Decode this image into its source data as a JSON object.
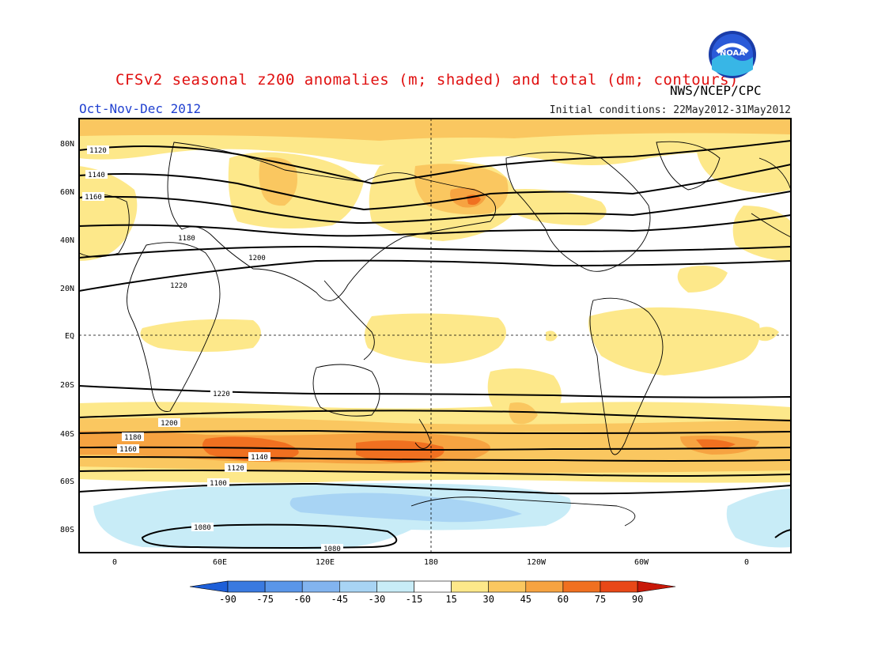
{
  "header": {
    "title": "CFSv2 seasonal z200 anomalies (m; shaded) and total (dm; contours)",
    "period": "Oct-Nov-Dec 2012",
    "initial_conditions": "Initial conditions: 22May2012-31May2012",
    "agency": "NWS/NCEP/CPC",
    "logo_text": "NOAA"
  },
  "map": {
    "lat_labels": [
      "80N",
      "60N",
      "40N",
      "20N",
      "EQ",
      "20S",
      "40S",
      "60S",
      "80S"
    ],
    "lon_labels": [
      "0",
      "60E",
      "120E",
      "180",
      "120W",
      "60W",
      "0"
    ],
    "contour_labels": [
      "1120",
      "1140",
      "1160",
      "1180",
      "1200",
      "1220",
      "1220",
      "1200",
      "1180",
      "1160",
      "1140",
      "1120",
      "1100",
      "1080",
      "1080"
    ]
  },
  "legend": {
    "ticks": [
      "-90",
      "-75",
      "-60",
      "-45",
      "-30",
      "-15",
      "15",
      "30",
      "45",
      "60",
      "75",
      "90"
    ],
    "colors": [
      "#1e5fd8",
      "#3a7ae0",
      "#5a96e8",
      "#82b4ef",
      "#a8d4f4",
      "#c8ecf7",
      "#ffffff",
      "#fde88a",
      "#fac760",
      "#f6a341",
      "#f07020",
      "#e84818",
      "#c81808"
    ]
  },
  "colors": {
    "title": "#e01010",
    "period": "#2040d0"
  }
}
